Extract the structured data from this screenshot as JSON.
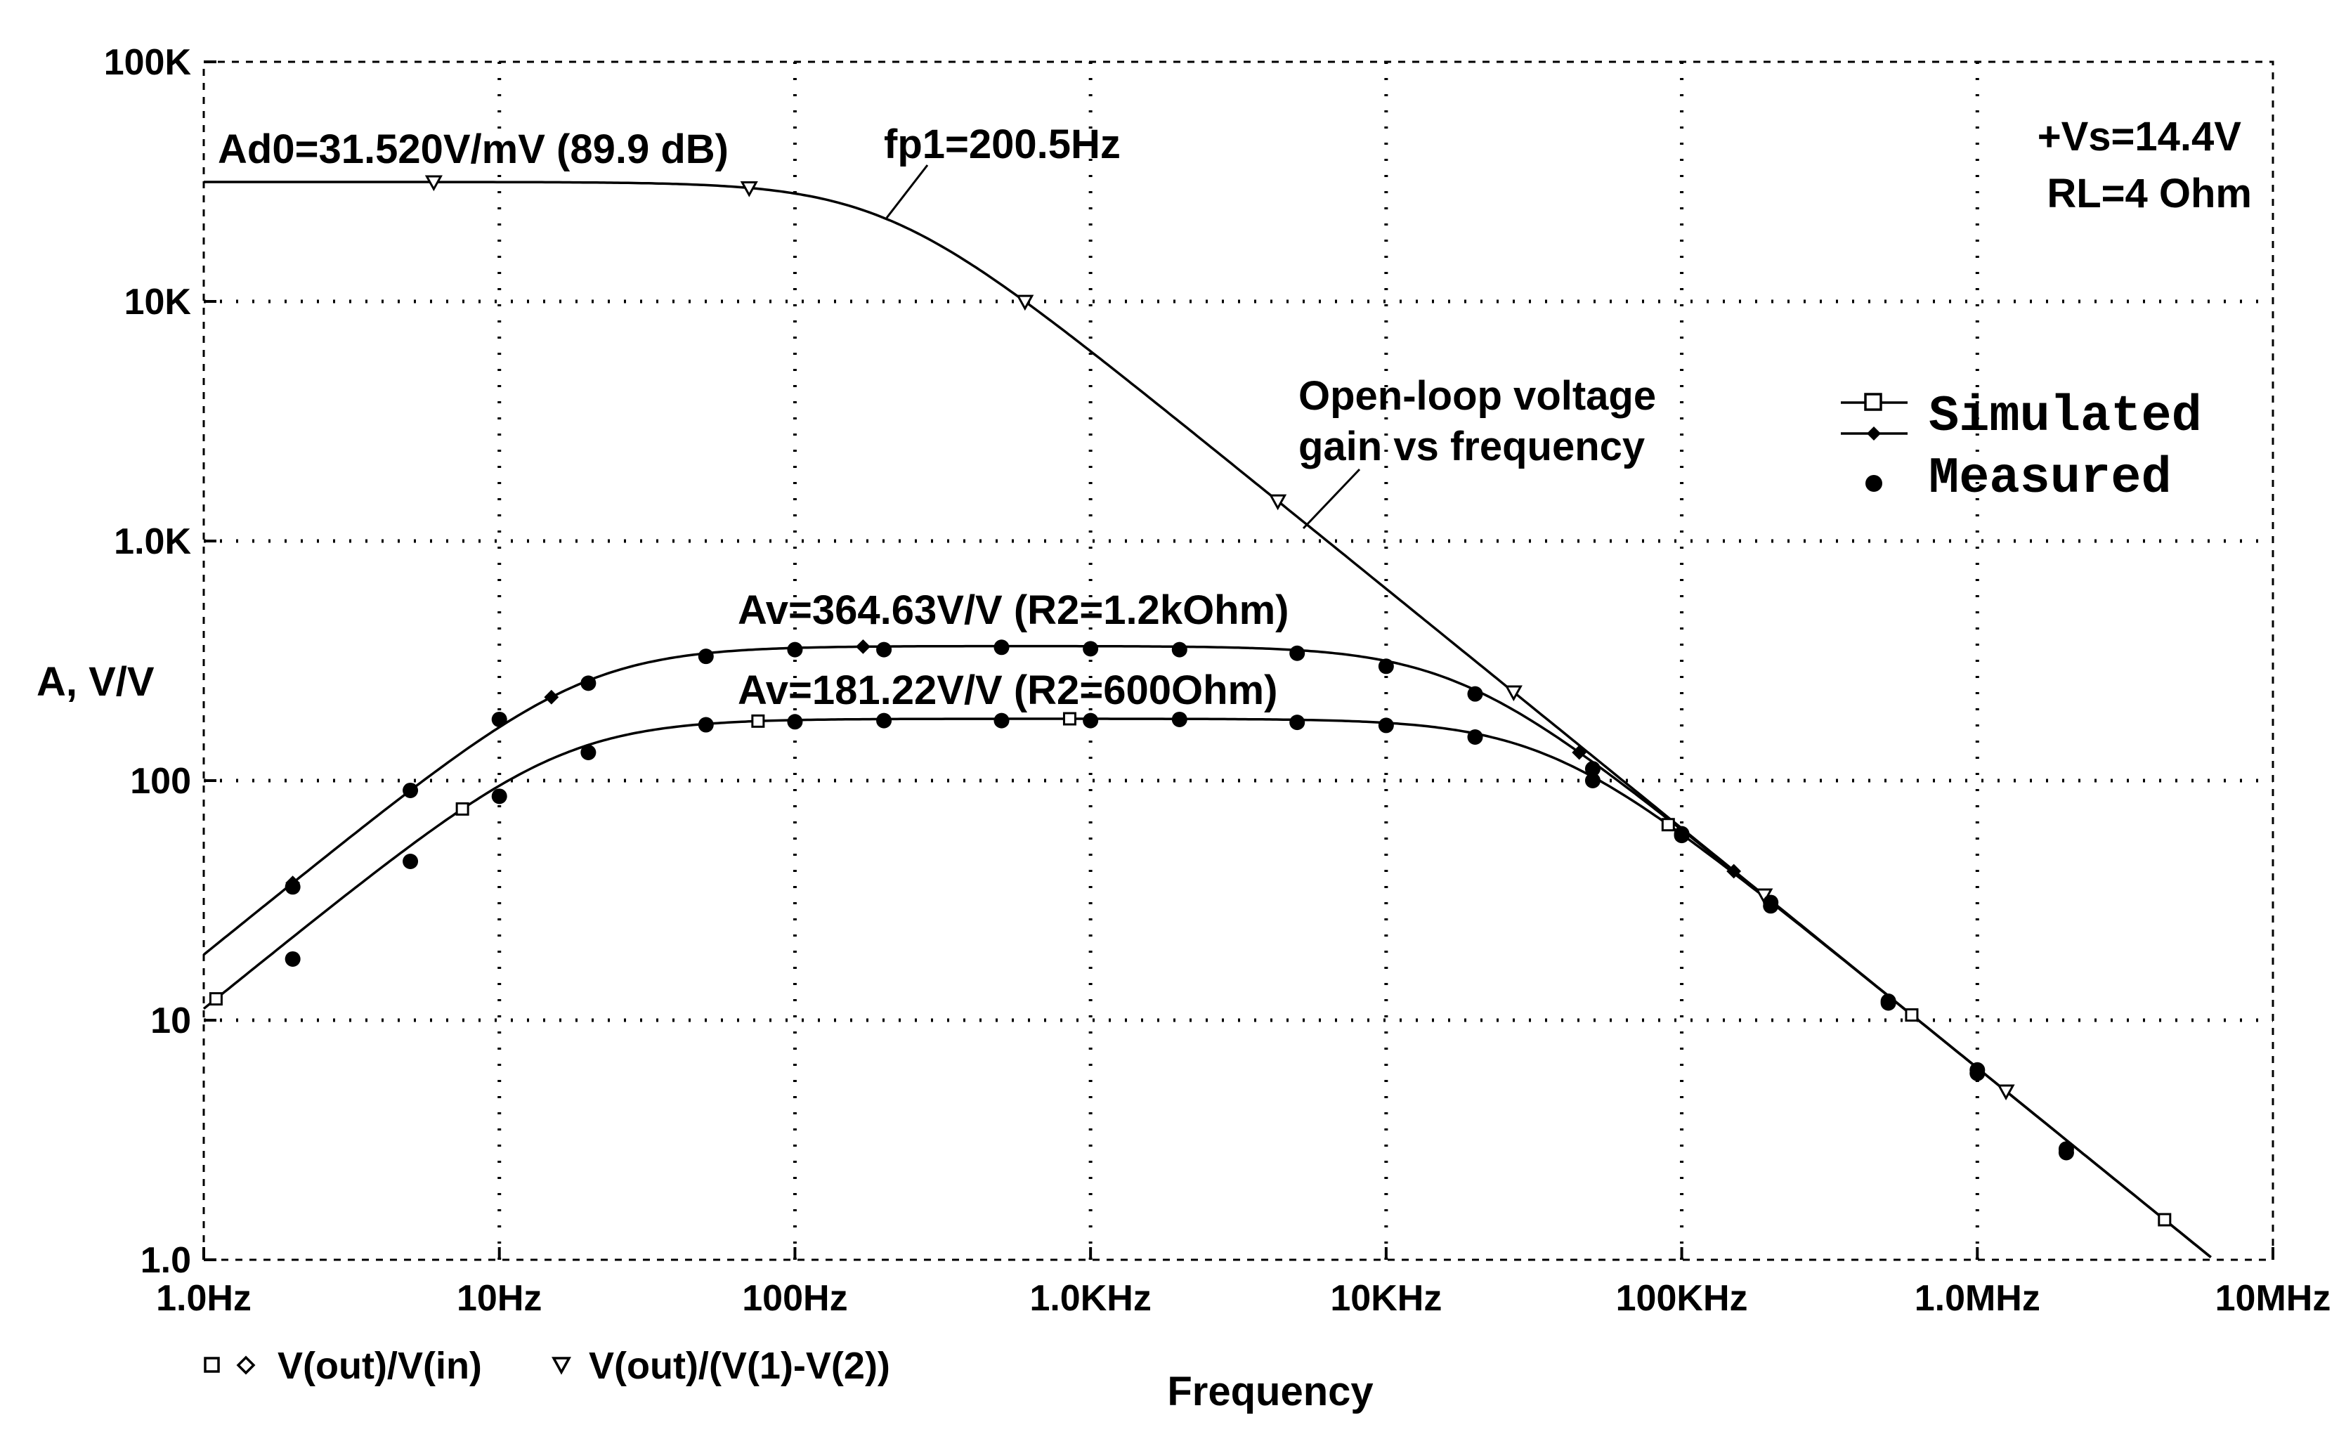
{
  "chart_data": {
    "type": "line",
    "title": "",
    "xlabel": "Frequency",
    "ylabel": "A, V/V",
    "x_scale": "log",
    "y_scale": "log",
    "xlim": [
      1,
      10000000
    ],
    "ylim": [
      1,
      100000
    ],
    "x_ticks": [
      {
        "value": 1,
        "label": "1.0Hz"
      },
      {
        "value": 10,
        "label": "10Hz"
      },
      {
        "value": 100,
        "label": "100Hz"
      },
      {
        "value": 1000,
        "label": "1.0KHz"
      },
      {
        "value": 10000,
        "label": "10KHz"
      },
      {
        "value": 100000,
        "label": "100KHz"
      },
      {
        "value": 1000000,
        "label": "1.0MHz"
      },
      {
        "value": 10000000,
        "label": "10MHz"
      }
    ],
    "y_ticks": [
      {
        "value": 1,
        "label": "1.0"
      },
      {
        "value": 10,
        "label": "10"
      },
      {
        "value": 100,
        "label": "100"
      },
      {
        "value": 1000,
        "label": "1.0K"
      },
      {
        "value": 10000,
        "label": "10K"
      },
      {
        "value": 100000,
        "label": "100K"
      }
    ],
    "series": [
      {
        "name": "V(out)/(V(1)-V(2))",
        "description": "Open-loop voltage gain",
        "marker": "triangle-down",
        "gain_dc": 31520,
        "pole_hz": 200.5,
        "marker_x": [
          6,
          70,
          600,
          4300,
          27000,
          190000,
          1250000
        ]
      },
      {
        "name": "V(out)/V(in)",
        "description": "Av=364.63 (R2=1.2kOhm)",
        "marker": "diamond",
        "gain_mid": 364.63,
        "low_corner_hz": 19.4,
        "marker_x": [
          2,
          15,
          170,
          45000,
          150000
        ]
      },
      {
        "name": "V(out)/V(in)",
        "description": "Av=181.22 (R2=600Ohm)",
        "marker": "square",
        "gain_mid": 181.22,
        "low_corner_hz": 16.2,
        "marker_x": [
          1.1,
          7.5,
          75,
          850,
          90000,
          600000,
          4300000
        ]
      }
    ],
    "measured_r2_1k2": [
      {
        "x": 2,
        "y": 36
      },
      {
        "x": 5,
        "y": 91
      },
      {
        "x": 10,
        "y": 180
      },
      {
        "x": 20,
        "y": 255
      },
      {
        "x": 50,
        "y": 330
      },
      {
        "x": 100,
        "y": 352
      },
      {
        "x": 200,
        "y": 352
      },
      {
        "x": 500,
        "y": 360
      },
      {
        "x": 1000,
        "y": 355
      },
      {
        "x": 2000,
        "y": 352
      },
      {
        "x": 5000,
        "y": 340
      },
      {
        "x": 10000,
        "y": 300
      },
      {
        "x": 20000,
        "y": 230
      },
      {
        "x": 50000,
        "y": 112
      },
      {
        "x": 100000,
        "y": 59
      },
      {
        "x": 200000,
        "y": 31
      },
      {
        "x": 500000,
        "y": 12
      },
      {
        "x": 1000000,
        "y": 6
      },
      {
        "x": 2000000,
        "y": 2.9
      }
    ],
    "measured_r2_600": [
      {
        "x": 2,
        "y": 18
      },
      {
        "x": 5,
        "y": 46
      },
      {
        "x": 10,
        "y": 86
      },
      {
        "x": 20,
        "y": 131
      },
      {
        "x": 50,
        "y": 171
      },
      {
        "x": 100,
        "y": 176
      },
      {
        "x": 200,
        "y": 178
      },
      {
        "x": 500,
        "y": 178
      },
      {
        "x": 1000,
        "y": 178
      },
      {
        "x": 2000,
        "y": 180
      },
      {
        "x": 5000,
        "y": 175
      },
      {
        "x": 10000,
        "y": 170
      },
      {
        "x": 20000,
        "y": 152
      },
      {
        "x": 50000,
        "y": 100
      },
      {
        "x": 100000,
        "y": 60
      },
      {
        "x": 200000,
        "y": 30
      },
      {
        "x": 500000,
        "y": 11.8
      },
      {
        "x": 1000000,
        "y": 6.2
      },
      {
        "x": 2000000,
        "y": 2.8
      }
    ],
    "annotations": {
      "ad0": "Ad0=31.520V/mV (89.9 dB)",
      "fp1": "fp1=200.5Hz",
      "vs": "+Vs=14.4V",
      "rl": "RL=4 Ohm",
      "open_loop_line1": "Open-loop voltage",
      "open_loop_line2": "gain vs frequency",
      "av_hi": "Av=364.63V/V (R2=1.2kOhm)",
      "av_lo": "Av=181.22V/V (R2=600Ohm)"
    },
    "legend": {
      "simulated": "Simulated",
      "measured": "Measured",
      "position": "right"
    },
    "trace_labels": {
      "closed_loop": "V(out)/V(in)",
      "open_loop": "V(out)/(V(1)-V(2))"
    }
  }
}
